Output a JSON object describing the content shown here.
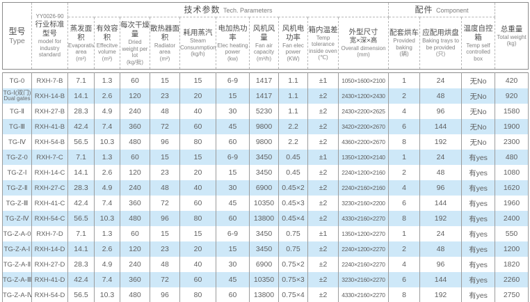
{
  "page": {
    "background": "#ffffff"
  },
  "colors": {
    "stripe": "#cee8f8",
    "outer_border": "#8a8a8a",
    "dashed_border": "#b5b5b5",
    "header_text": "#4d4d4d",
    "body_text": "#606060"
  },
  "table": {
    "groups": {
      "tech_zh": "技术参数",
      "tech_en": "Tech. Parameters",
      "component_zh": "配件",
      "component_en": "Component"
    },
    "columns": [
      {
        "code": "",
        "zh": "型号",
        "zh2": "",
        "en": "Type",
        "unit": ""
      },
      {
        "code": "YY0026-90",
        "zh": "行业标准型号",
        "zh2": "",
        "en": "model for industry standard",
        "unit": ""
      },
      {
        "code": "",
        "zh": "蒸发面积",
        "zh2": "",
        "en": "Evaporative area",
        "unit": "(m²)"
      },
      {
        "code": "",
        "zh": "有效容积",
        "zh2": "",
        "en": "Effecitve volume",
        "unit": "(m³)"
      },
      {
        "code": "",
        "zh": "每次干燥量",
        "zh2": "",
        "en": "Dried weight per lot",
        "unit": "(kg/批)"
      },
      {
        "code": "",
        "zh": "散热器面积",
        "zh2": "",
        "en": "Radiator area",
        "unit": "(m²)"
      },
      {
        "code": "",
        "zh": "耗用蒸汽",
        "zh2": "",
        "en": "Steam Consunmption",
        "unit": "(kg/h)"
      },
      {
        "code": "",
        "zh": "电加热功率",
        "zh2": "",
        "en": "Elec heating power",
        "unit": "(kw)"
      },
      {
        "code": "",
        "zh": "风机风量",
        "zh2": "",
        "en": "Fan air capacity",
        "unit": "(m³/h)"
      },
      {
        "code": "",
        "zh": "风机电功率",
        "zh2": "",
        "en": "Fan elec power",
        "unit": "(KW)"
      },
      {
        "code": "",
        "zh": "箱内温差",
        "zh2": "",
        "en": "Temp tolerance inside oven",
        "unit": "(℃)"
      },
      {
        "code": "",
        "zh": "外型尺寸",
        "zh2": "宽×深×高",
        "en": "Overall dimension",
        "unit": "(mm)"
      },
      {
        "code": "",
        "zh": "配套烘车",
        "zh2": "",
        "en": "Provided baking",
        "unit": "(辆)"
      },
      {
        "code": "",
        "zh": "应配用烘盘",
        "zh2": "",
        "en": "Baking trays to be provided",
        "unit": "(只)"
      },
      {
        "code": "",
        "zh": "温度自控箱",
        "zh2": "",
        "en": "Temp self controlled box",
        "unit": ""
      },
      {
        "code": "",
        "zh": "总重量",
        "zh2": "",
        "en": "Total weight",
        "unit": "(kg)"
      }
    ],
    "rows": [
      {
        "type": "TG-0",
        "type_sub": "",
        "std": "RXH-7-B",
        "evap": "7.1",
        "vol": "1.3",
        "dried": "60",
        "radiator": "15",
        "steam": "15",
        "heat": "6-9",
        "fan_air": "1417",
        "fan_elec": "1.1",
        "temp_tol": "±1",
        "dim": "1050×1600×2100",
        "carts": "1",
        "trays": "24",
        "temp_box": "无No",
        "weight": "420"
      },
      {
        "type": "TG-Ⅰ(双门)",
        "type_sub": "Dual gates",
        "std": "RXH-14-B",
        "evap": "14.1",
        "vol": "2.6",
        "dried": "120",
        "radiator": "23",
        "steam": "20",
        "heat": "15",
        "fan_air": "1417",
        "fan_elec": "1.1",
        "temp_tol": "±2",
        "dim": "2430×1200×2430",
        "carts": "2",
        "trays": "48",
        "temp_box": "无No",
        "weight": "920"
      },
      {
        "type": "TG-Ⅱ",
        "type_sub": "",
        "std": "RXH-27-B",
        "evap": "28.3",
        "vol": "4.9",
        "dried": "240",
        "radiator": "48",
        "steam": "40",
        "heat": "30",
        "fan_air": "5230",
        "fan_elec": "1.1",
        "temp_tol": "±2",
        "dim": "2430×2200×2625",
        "carts": "4",
        "trays": "96",
        "temp_box": "无No",
        "weight": "1580"
      },
      {
        "type": "TG-Ⅲ",
        "type_sub": "",
        "std": "RXH-41-B",
        "evap": "42.4",
        "vol": "7.4",
        "dried": "360",
        "radiator": "72",
        "steam": "60",
        "heat": "45",
        "fan_air": "9800",
        "fan_elec": "2.2",
        "temp_tol": "±2",
        "dim": "3420×2200×2670",
        "carts": "6",
        "trays": "144",
        "temp_box": "无No",
        "weight": "1900"
      },
      {
        "type": "TG-Ⅳ",
        "type_sub": "",
        "std": "RXH-54-B",
        "evap": "56.5",
        "vol": "10.3",
        "dried": "480",
        "radiator": "96",
        "steam": "80",
        "heat": "60",
        "fan_air": "9800",
        "fan_elec": "2.2",
        "temp_tol": "±2",
        "dim": "4360×2200×2670",
        "carts": "8",
        "trays": "192",
        "temp_box": "无No",
        "weight": "2300"
      },
      {
        "type": "TG-Z-0",
        "type_sub": "",
        "std": "RXH-7-C",
        "evap": "7.1",
        "vol": "1.3",
        "dried": "60",
        "radiator": "15",
        "steam": "15",
        "heat": "6-9",
        "fan_air": "3450",
        "fan_elec": "0.45",
        "temp_tol": "±1",
        "dim": "1350×1200×2140",
        "carts": "1",
        "trays": "24",
        "temp_box": "有yes",
        "weight": "480"
      },
      {
        "type": "TG-Z-Ⅰ",
        "type_sub": "",
        "std": "RXH-14-C",
        "evap": "14.1",
        "vol": "2.6",
        "dried": "120",
        "radiator": "23",
        "steam": "20",
        "heat": "15",
        "fan_air": "3450",
        "fan_elec": "0.45",
        "temp_tol": "±2",
        "dim": "2240×1200×2160",
        "carts": "2",
        "trays": "48",
        "temp_box": "有yes",
        "weight": "1080"
      },
      {
        "type": "TG-Z-Ⅱ",
        "type_sub": "",
        "std": "RXH-27-C",
        "evap": "28.3",
        "vol": "4.9",
        "dried": "240",
        "radiator": "48",
        "steam": "40",
        "heat": "30",
        "fan_air": "6900",
        "fan_elec": "0.45×2",
        "temp_tol": "±2",
        "dim": "2240×2160×2160",
        "carts": "4",
        "trays": "96",
        "temp_box": "有yes",
        "weight": "1620"
      },
      {
        "type": "TG-Z-Ⅲ",
        "type_sub": "",
        "std": "RXH-41-C",
        "evap": "42.4",
        "vol": "7.4",
        "dried": "360",
        "radiator": "72",
        "steam": "60",
        "heat": "45",
        "fan_air": "10350",
        "fan_elec": "0.45×3",
        "temp_tol": "±2",
        "dim": "3230×2160×2200",
        "carts": "6",
        "trays": "144",
        "temp_box": "有yes",
        "weight": "1960"
      },
      {
        "type": "TG-Z-Ⅳ",
        "type_sub": "",
        "std": "RXH-54-C",
        "evap": "56.5",
        "vol": "10.3",
        "dried": "480",
        "radiator": "96",
        "steam": "80",
        "heat": "60",
        "fan_air": "13800",
        "fan_elec": "0.45×4",
        "temp_tol": "±2",
        "dim": "4330×2160×2270",
        "carts": "8",
        "trays": "192",
        "temp_box": "有yes",
        "weight": "2400"
      },
      {
        "type": "TG-Z-A-0",
        "type_sub": "",
        "std": "RXH-7-D",
        "evap": "7.1",
        "vol": "1.3",
        "dried": "60",
        "radiator": "15",
        "steam": "15",
        "heat": "6-9",
        "fan_air": "3450",
        "fan_elec": "0.75",
        "temp_tol": "±1",
        "dim": "1350×1200×2270",
        "carts": "1",
        "trays": "24",
        "temp_box": "有yes",
        "weight": "550"
      },
      {
        "type": "TG-Z-A-Ⅰ",
        "type_sub": "",
        "std": "RXH-14-D",
        "evap": "14.1",
        "vol": "2.6",
        "dried": "120",
        "radiator": "23",
        "steam": "20",
        "heat": "15",
        "fan_air": "3450",
        "fan_elec": "0.75",
        "temp_tol": "±2",
        "dim": "2240×1200×2270",
        "carts": "2",
        "trays": "48",
        "temp_box": "有yes",
        "weight": "1200"
      },
      {
        "type": "TG-Z-A-Ⅱ",
        "type_sub": "",
        "std": "RXH-27-D",
        "evap": "28.3",
        "vol": "4.9",
        "dried": "240",
        "radiator": "48",
        "steam": "40",
        "heat": "30",
        "fan_air": "6900",
        "fan_elec": "0.75×2",
        "temp_tol": "±2",
        "dim": "2240×2160×2270",
        "carts": "4",
        "trays": "96",
        "temp_box": "有yes",
        "weight": "1820"
      },
      {
        "type": "TG-Z-A-Ⅲ",
        "type_sub": "",
        "std": "RXH-41-D",
        "evap": "42.4",
        "vol": "7.4",
        "dried": "360",
        "radiator": "72",
        "steam": "60",
        "heat": "45",
        "fan_air": "10350",
        "fan_elec": "0.75×3",
        "temp_tol": "±2",
        "dim": "3230×2160×2270",
        "carts": "6",
        "trays": "144",
        "temp_box": "有yes",
        "weight": "2260"
      },
      {
        "type": "TG-Z-A-Ⅳ",
        "type_sub": "",
        "std": "RXH-54-D",
        "evap": "56.5",
        "vol": "10.3",
        "dried": "480",
        "radiator": "96",
        "steam": "80",
        "heat": "60",
        "fan_air": "13800",
        "fan_elec": "0.75×4",
        "temp_tol": "±2",
        "dim": "4330×2160×2270",
        "carts": "8",
        "trays": "192",
        "temp_box": "有yes",
        "weight": "2750"
      }
    ]
  }
}
